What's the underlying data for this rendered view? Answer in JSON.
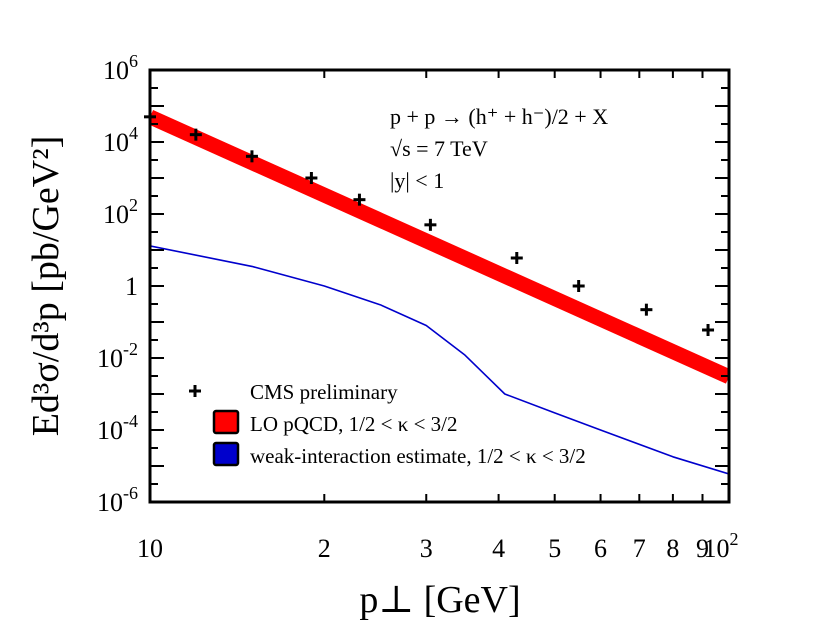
{
  "chart_data": {
    "type": "line",
    "title": "",
    "xlabel": "p⊥ [GeV]",
    "ylabel": "Ed³σ/d³p [pb/GeV²]",
    "xscale": "log",
    "yscale": "log",
    "xlim": [
      10,
      100
    ],
    "ylim": [
      1e-06,
      1000000.0
    ],
    "grid": false,
    "legend_position": "bottom-left",
    "x_ticks": [
      {
        "value": 10,
        "label": "10"
      },
      {
        "value": 20,
        "label": "2"
      },
      {
        "value": 30,
        "label": "3"
      },
      {
        "value": 40,
        "label": "4"
      },
      {
        "value": 50,
        "label": "5"
      },
      {
        "value": 60,
        "label": "6"
      },
      {
        "value": 70,
        "label": "7"
      },
      {
        "value": 80,
        "label": "8"
      },
      {
        "value": 90,
        "label": "9"
      },
      {
        "value": 100,
        "label": "10",
        "sup": "2"
      }
    ],
    "y_ticks": [
      {
        "value": 1000000.0,
        "label": "10",
        "sup": "6"
      },
      {
        "value": 10000.0,
        "label": "10",
        "sup": "4"
      },
      {
        "value": 100.0,
        "label": "10",
        "sup": "2"
      },
      {
        "value": 1,
        "label": "1",
        "sup": ""
      },
      {
        "value": 0.01,
        "label": "10",
        "sup": "-2"
      },
      {
        "value": 0.0001,
        "label": "10",
        "sup": "-4"
      },
      {
        "value": 1e-06,
        "label": "10",
        "sup": "-6"
      }
    ],
    "annotation_lines": [
      "p + p → (h⁺ + h⁻)/2 + X",
      "√s = 7 TeV",
      "|y| < 1"
    ],
    "series": [
      {
        "name": "CMS preliminary",
        "kind": "points",
        "color": "#000000",
        "x": [
          10,
          12,
          15,
          19,
          23,
          30.5,
          43,
          55,
          72,
          92
        ],
        "y": [
          50000,
          16000,
          4000,
          1000,
          250,
          50,
          6,
          1.0,
          0.22,
          0.06
        ]
      },
      {
        "name": "LO pQCD, 1/2 < κ < 3/2",
        "kind": "band",
        "color": "#ff0000",
        "x": [
          10,
          100
        ],
        "y": [
          50000,
          0.003
        ]
      },
      {
        "name": "weak-interaction estimate, 1/2 < κ < 3/2",
        "kind": "line",
        "color": "#0000cc",
        "x": [
          10,
          15,
          20,
          25,
          30,
          35,
          41,
          50,
          60,
          80,
          100
        ],
        "y": [
          13,
          3.5,
          1.0,
          0.3,
          0.08,
          0.012,
          0.001,
          0.0003,
          0.0001,
          1.8e-05,
          6e-06
        ]
      }
    ]
  }
}
